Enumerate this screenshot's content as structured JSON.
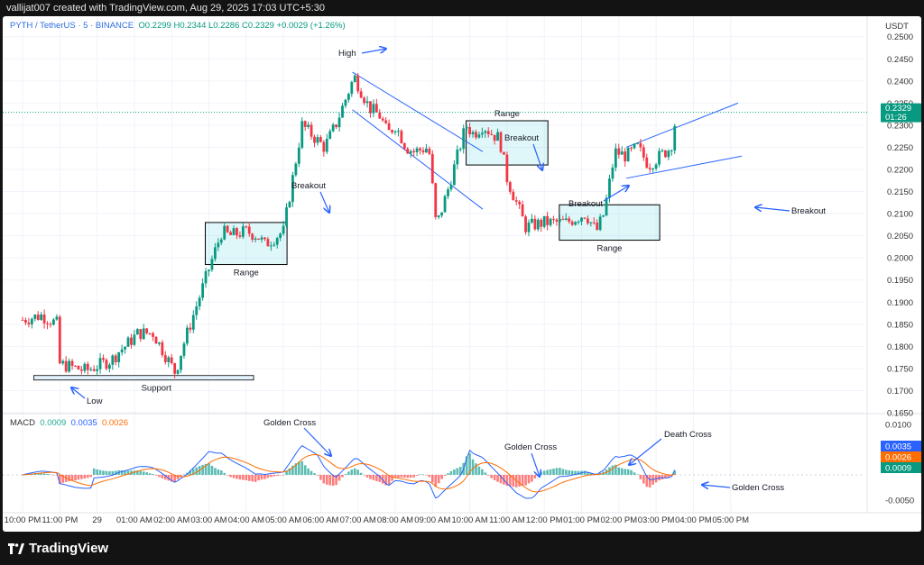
{
  "header": {
    "creator_line": "vallijat007 created with TradingView.com, Aug 29, 2025 17:03 UTC+5:30"
  },
  "legend": {
    "symbol": "PYTH / TetherUS · 5 · BINANCE",
    "ohlc": "O0.2299  H0.2344  L0.2286  C0.2329  +0.0029 (+1.26%)",
    "currency": "USDT"
  },
  "macd_legend": {
    "name": "MACD",
    "v1": "0.0009",
    "v2": "0.0035",
    "v3": "0.0026"
  },
  "price_axis": {
    "ticks": [
      "0.2500",
      "0.2450",
      "0.2400",
      "0.2350",
      "0.2300",
      "0.2250",
      "0.2200",
      "0.2150",
      "0.2100",
      "0.2050",
      "0.2000",
      "0.1950",
      "0.1900",
      "0.1850",
      "0.1800",
      "0.1750",
      "0.1700",
      "0.1650"
    ],
    "last_price": "0.2329",
    "countdown": "01:26"
  },
  "macd_axis": {
    "ticks": [
      "0.0100",
      "0.0035",
      "0.0026",
      "0.0009",
      "-0.0050"
    ]
  },
  "time_axis": {
    "labels": [
      "10:00 PM",
      "11:00 PM",
      "29",
      "01:00 AM",
      "02:00 AM",
      "03:00 AM",
      "04:00 AM",
      "05:00 AM",
      "06:00 AM",
      "07:00 AM",
      "08:00 AM",
      "09:00 AM",
      "10:00 AM",
      "11:00 AM",
      "12:00 PM",
      "01:00 PM",
      "02:00 PM",
      "03:00 PM",
      "04:00 PM",
      "05:00 PM"
    ]
  },
  "annotations": {
    "high": "High",
    "low": "Low",
    "support": "Support",
    "range1": "Range",
    "range2": "Range",
    "range3": "Range",
    "breakout1": "Breakout",
    "breakout2": "Breakout",
    "breakout3": "Breakout",
    "breakout4": "Breakout",
    "golden1": "Golden Cross",
    "golden2": "Golden Cross",
    "golden3": "Golden Cross",
    "death": "Death Cross"
  },
  "footer": {
    "brand": "TradingView"
  },
  "colors": {
    "up": "#089981",
    "down": "#f23645",
    "macd": "#2962ff",
    "signal": "#ff6d00",
    "annotation": "#2962ff"
  },
  "chart_data": {
    "type": "candlestick",
    "symbol": "PYTH / TetherUS",
    "interval": "5",
    "exchange": "BINANCE",
    "ylim": [
      0.165,
      0.253
    ],
    "waypoints_hours": [
      0,
      0.5,
      0.95,
      1.0,
      1.7,
      2.4,
      2.6,
      2.75,
      3.1,
      3.5,
      4.1,
      4.3,
      4.7,
      5.1,
      5.35,
      5.55,
      6.0,
      6.3,
      6.5,
      7.0,
      7.5,
      8.1,
      8.4,
      8.9,
      9.3,
      9.6,
      9.8,
      10.0,
      10.3,
      10.5,
      10.9,
      11.1,
      11.4,
      11.9,
      12.1,
      12.35,
      12.6,
      12.8,
      13.0,
      13.5,
      14.0,
      14.6,
      15.1,
      15.4,
      15.6,
      15.9,
      16.2,
      16.5,
      16.8,
      17.1,
      17.4,
      17.55
    ],
    "waypoints_price": [
      0.186,
      0.187,
      0.185,
      0.176,
      0.1745,
      0.177,
      0.179,
      0.18,
      0.183,
      0.183,
      0.174,
      0.18,
      0.19,
      0.2,
      0.206,
      0.205,
      0.206,
      0.205,
      0.203,
      0.206,
      0.23,
      0.225,
      0.23,
      0.241,
      0.234,
      0.232,
      0.228,
      0.23,
      0.225,
      0.224,
      0.225,
      0.207,
      0.215,
      0.23,
      0.228,
      0.23,
      0.228,
      0.227,
      0.218,
      0.207,
      0.208,
      0.208,
      0.21,
      0.206,
      0.21,
      0.224,
      0.223,
      0.225,
      0.221,
      0.223,
      0.225,
      0.2329
    ],
    "last": {
      "open": 0.2299,
      "high": 0.2344,
      "low": 0.2286,
      "close": 0.2329,
      "change": 0.0029,
      "change_pct": 1.26
    },
    "key_levels": {
      "high": 0.2505,
      "low": 0.1735,
      "support": 0.173
    },
    "ranges": [
      {
        "label": "Range",
        "from": "03:00 AM",
        "to": "05:00 AM",
        "low": 0.1985,
        "high": 0.208
      },
      {
        "label": "Range",
        "from": "10:00 AM",
        "to": "12:00 PM",
        "low": 0.221,
        "high": 0.231
      },
      {
        "label": "Range",
        "from": "12:30 PM",
        "to": "03:00 PM",
        "low": 0.204,
        "high": 0.212
      }
    ],
    "macd": {
      "macd": 0.0009,
      "signal": 0.0035,
      "histogram": 0.0026,
      "ylim": [
        -0.007,
        0.012
      ]
    }
  }
}
